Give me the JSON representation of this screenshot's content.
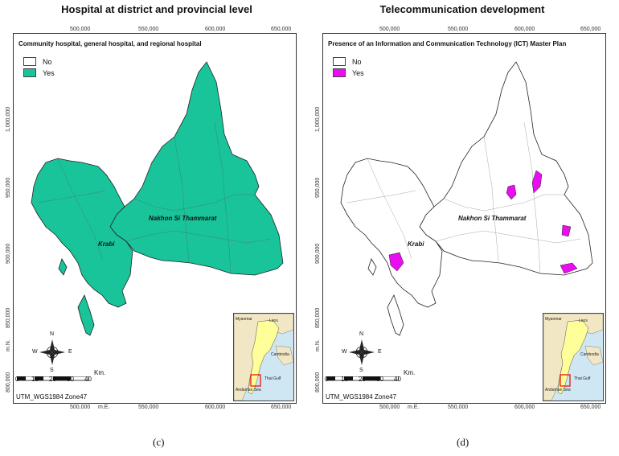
{
  "panels": [
    {
      "title": "Hospital at district and provincial level",
      "caption": "(c)",
      "subtitle": "Community hospital, general hospital, and regional hospital",
      "legend": [
        {
          "label": "No",
          "color": "#ffffff"
        },
        {
          "label": "Yes",
          "color": "#19c49a"
        }
      ],
      "fill": "#19c49a",
      "highlights": false
    },
    {
      "title": "Telecommunication development",
      "caption": "(d)",
      "subtitle": "Presence of an Information and Communication Technology (ICT) Master Plan",
      "legend": [
        {
          "label": "No",
          "color": "#ffffff"
        },
        {
          "label": "Yes",
          "color": "#e80ef0"
        }
      ],
      "fill": "#ffffff",
      "highlights": true
    }
  ],
  "axes": {
    "x_ticks": [
      "500,000",
      "550,000",
      "600,000",
      "650,000"
    ],
    "y_ticks": [
      "1,000,000",
      "950,000",
      "900,000",
      "850,000",
      "800,000"
    ],
    "x_unit": "m.E.",
    "y_unit": "m.N."
  },
  "places": {
    "krabi": "Krabi",
    "nakhon": "Nakhon Si Thammarat"
  },
  "scale": {
    "ticks": [
      "0",
      "10",
      "20",
      "30",
      "40"
    ],
    "unit": "Km."
  },
  "compass": {
    "n": "N",
    "s": "S",
    "e": "E",
    "w": "W"
  },
  "projection": "UTM_WGS1984 Zone47",
  "inset": {
    "myanmar": "Myanmar",
    "laos": "Laos",
    "cambodia": "Cambodia",
    "thai_gulf": "Thai Gulf",
    "andaman": "Andaman Sea"
  }
}
